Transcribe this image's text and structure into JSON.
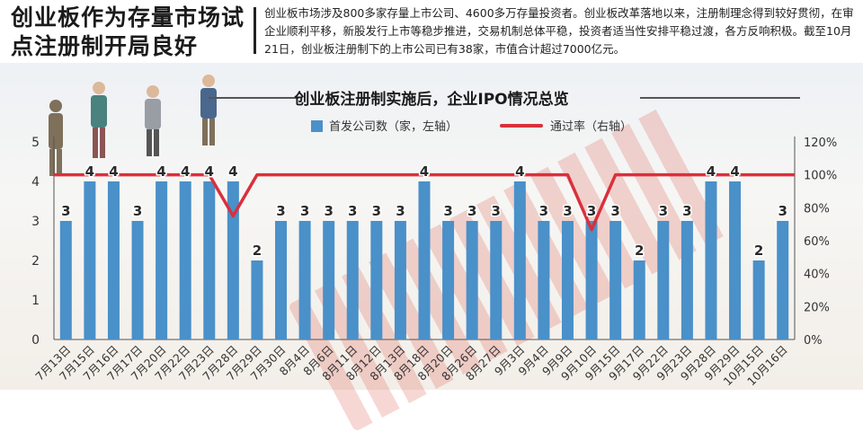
{
  "header": {
    "headline": "创业板作为存量市场试点注册制开局良好",
    "summary": "创业板市场涉及800多家存量上市公司、4600多万存量投资者。创业板改革落地以来，注册制理念得到较好贯彻，在审企业顺利平移，新股发行上市等稳步推进，交易机制总体平稳，投资者适当性安排平稳过渡，各方反响积极。截至10月21日，创业板注册制下的上市公司已有38家，市值合计超过7000亿元。"
  },
  "watermark": "创业板注册制",
  "colors": {
    "bar": "#4a90c9",
    "line": "#d9303c"
  },
  "chart_data": {
    "type": "bar",
    "title": "创业板注册制实施后，企业IPO情况总览",
    "categories": [
      "7月13日",
      "7月15日",
      "7月16日",
      "7月17日",
      "7月20日",
      "7月22日",
      "7月23日",
      "7月28日",
      "7月29日",
      "7月30日",
      "8月4日",
      "8月6日",
      "8月11日",
      "8月12日",
      "8月13日",
      "8月18日",
      "8月20日",
      "8月26日",
      "8月27日",
      "9月3日",
      "9月4日",
      "9月9日",
      "9月10日",
      "9月15日",
      "9月17日",
      "9月22日",
      "9月23日",
      "9月28日",
      "9月29日",
      "10月15日",
      "10月16日"
    ],
    "series": [
      {
        "name": "首发公司数（家，左轴）",
        "type": "bar",
        "axis": "left",
        "values": [
          3,
          4,
          4,
          3,
          4,
          4,
          4,
          4,
          2,
          3,
          3,
          3,
          3,
          3,
          3,
          4,
          3,
          3,
          3,
          4,
          3,
          3,
          3,
          3,
          2,
          3,
          3,
          4,
          4,
          2,
          3
        ]
      },
      {
        "name": "通过率（右轴）",
        "type": "line",
        "axis": "right",
        "values": [
          100,
          100,
          100,
          100,
          100,
          100,
          100,
          75,
          100,
          100,
          100,
          100,
          100,
          100,
          100,
          100,
          100,
          100,
          100,
          100,
          100,
          100,
          66.7,
          100,
          100,
          100,
          100,
          100,
          100,
          100,
          100
        ]
      }
    ],
    "ylim": [
      0,
      5
    ],
    "y_ticks": [
      "0",
      "1",
      "2",
      "3",
      "4",
      "5"
    ],
    "y2lim": [
      0,
      120
    ],
    "y2_ticks": [
      "0%",
      "20%",
      "40%",
      "60%",
      "80%",
      "100%",
      "120%"
    ],
    "grid": false,
    "legend": "top"
  }
}
